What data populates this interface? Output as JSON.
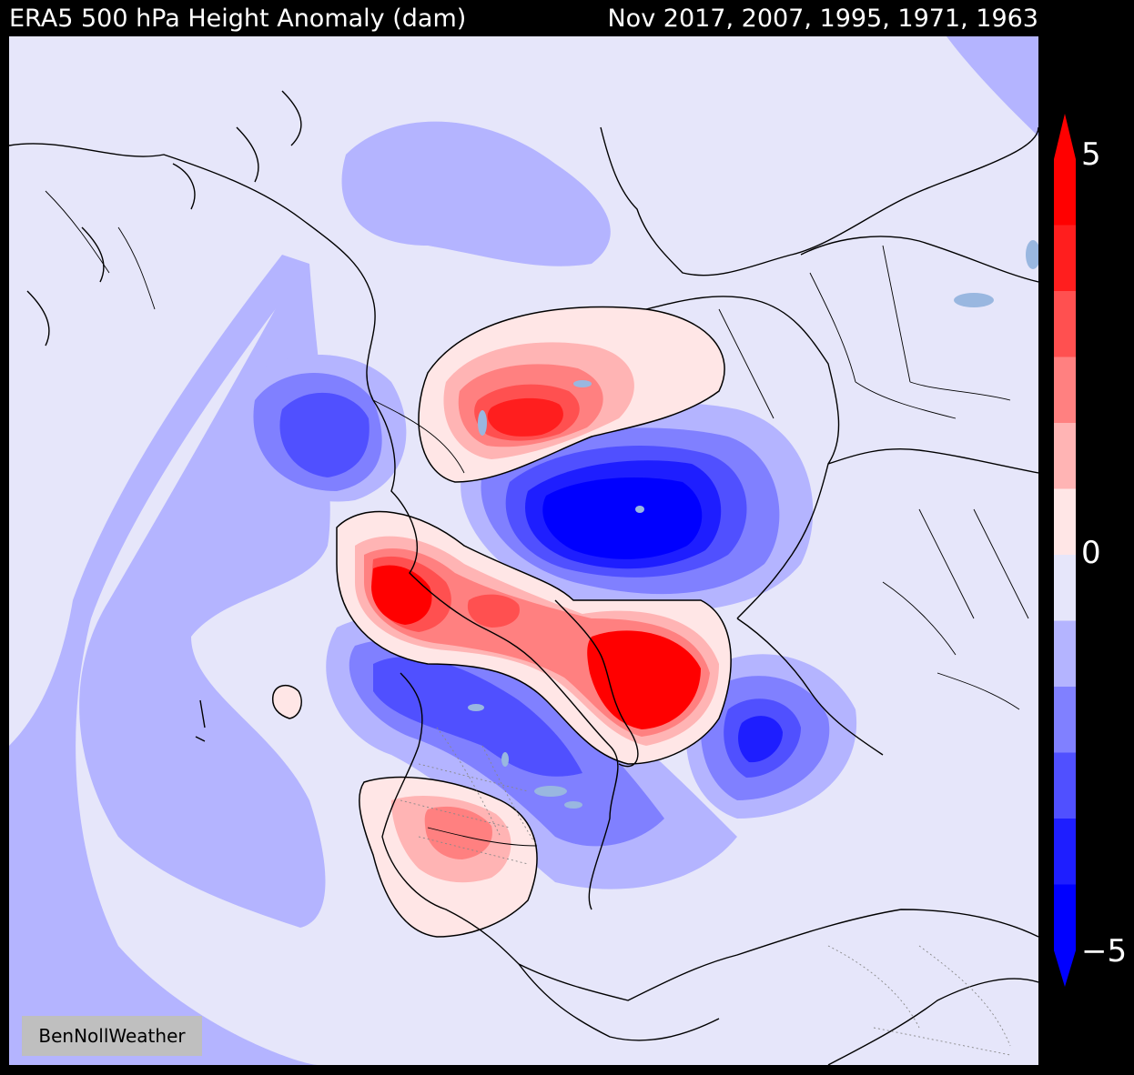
{
  "header": {
    "title": "ERA5 500 hPa Height Anomaly (dam)",
    "subtitle": "Nov 2017, 2007, 1995, 1971, 1963"
  },
  "watermark": "BenNollWeather",
  "colorbar": {
    "tick_labels": [
      "5",
      "0",
      "−5"
    ],
    "levels_from_top": [
      "#ff0000",
      "#ff1e1e",
      "#ff5050",
      "#ff8080",
      "#ffb4b4",
      "#ffe6e6",
      "#e6e6fa",
      "#b4b4ff",
      "#8080ff",
      "#5050ff",
      "#1e1eff",
      "#0000ff"
    ]
  },
  "map": {
    "projection": "north-polar-stereographic",
    "field": "500 hPa geopotential height anomaly",
    "colors": {
      "background": "#e6e6fa",
      "coastline": "#000000",
      "lakes": "#99b7e0"
    }
  }
}
